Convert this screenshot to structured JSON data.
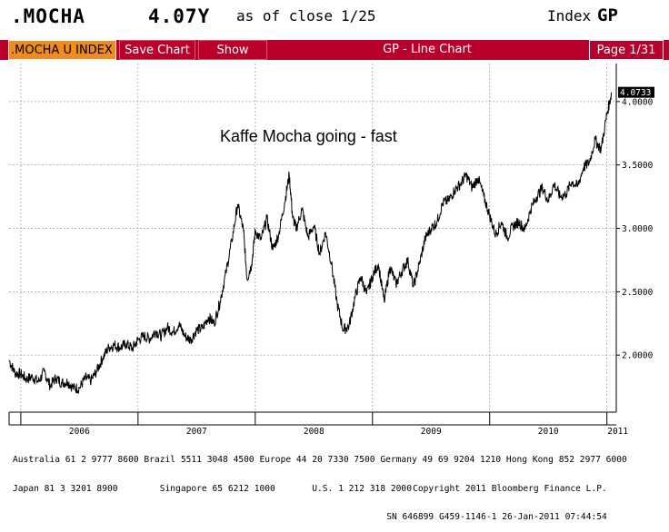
{
  "header": {
    "ticker": ".MOCHA",
    "price": "4.07Y",
    "as_of_label": "as of close",
    "as_of_date": "1/25",
    "index_label": "Index",
    "function_code": "GP"
  },
  "toolbar": {
    "security": ".MOCHA U INDEX",
    "save_chart": "Save Chart",
    "show": "Show",
    "title": "GP - Line Chart",
    "page": "Page 1/31"
  },
  "colors": {
    "toolbar_red": "#b8002a",
    "security_orange": "#f08c1e",
    "line": "#000000"
  },
  "chart_data": {
    "type": "line",
    "title": "",
    "annotation": "Kaffe Mocha going - fast",
    "xlabel": "",
    "ylabel": "",
    "x_tick_labels": [
      "2006",
      "2007",
      "2008",
      "2009",
      "2010",
      "2011"
    ],
    "y_tick_labels": [
      "2.0000",
      "2.5000",
      "3.0000",
      "3.5000",
      "4.0000"
    ],
    "y_ticks": [
      2.0,
      2.5,
      3.0,
      3.5,
      4.0
    ],
    "xlim": [
      2005.9,
      2011.08
    ],
    "ylim": [
      1.55,
      4.3
    ],
    "grid": true,
    "last_value_label": "4.0733",
    "last_value": 4.0733,
    "series": [
      {
        "values": [
          [
            2005.9,
            1.96
          ],
          [
            2005.95,
            1.86
          ],
          [
            2006.0,
            1.85
          ],
          [
            2006.05,
            1.81
          ],
          [
            2006.1,
            1.83
          ],
          [
            2006.15,
            1.79
          ],
          [
            2006.2,
            1.87
          ],
          [
            2006.25,
            1.76
          ],
          [
            2006.3,
            1.82
          ],
          [
            2006.35,
            1.78
          ],
          [
            2006.4,
            1.79
          ],
          [
            2006.45,
            1.74
          ],
          [
            2006.5,
            1.74
          ],
          [
            2006.55,
            1.82
          ],
          [
            2006.6,
            1.8
          ],
          [
            2006.65,
            1.88
          ],
          [
            2006.7,
            1.98
          ],
          [
            2006.75,
            2.06
          ],
          [
            2006.8,
            2.08
          ],
          [
            2006.85,
            2.06
          ],
          [
            2006.9,
            2.09
          ],
          [
            2006.95,
            2.05
          ],
          [
            2007.0,
            2.12
          ],
          [
            2007.05,
            2.15
          ],
          [
            2007.1,
            2.13
          ],
          [
            2007.15,
            2.19
          ],
          [
            2007.2,
            2.15
          ],
          [
            2007.25,
            2.22
          ],
          [
            2007.3,
            2.18
          ],
          [
            2007.35,
            2.24
          ],
          [
            2007.4,
            2.15
          ],
          [
            2007.45,
            2.12
          ],
          [
            2007.5,
            2.2
          ],
          [
            2007.55,
            2.21
          ],
          [
            2007.6,
            2.3
          ],
          [
            2007.65,
            2.25
          ],
          [
            2007.7,
            2.42
          ],
          [
            2007.75,
            2.65
          ],
          [
            2007.8,
            2.9
          ],
          [
            2007.85,
            3.19
          ],
          [
            2007.9,
            2.98
          ],
          [
            2007.93,
            2.6
          ],
          [
            2007.97,
            2.72
          ],
          [
            2008.0,
            2.98
          ],
          [
            2008.05,
            2.91
          ],
          [
            2008.1,
            3.08
          ],
          [
            2008.15,
            2.83
          ],
          [
            2008.2,
            2.95
          ],
          [
            2008.25,
            3.2
          ],
          [
            2008.29,
            3.42
          ],
          [
            2008.32,
            3.08
          ],
          [
            2008.35,
            3.0
          ],
          [
            2008.4,
            3.15
          ],
          [
            2008.45,
            2.93
          ],
          [
            2008.5,
            3.02
          ],
          [
            2008.55,
            2.8
          ],
          [
            2008.6,
            2.97
          ],
          [
            2008.65,
            2.72
          ],
          [
            2008.7,
            2.4
          ],
          [
            2008.75,
            2.2
          ],
          [
            2008.8,
            2.23
          ],
          [
            2008.85,
            2.45
          ],
          [
            2008.9,
            2.62
          ],
          [
            2008.95,
            2.48
          ],
          [
            2009.0,
            2.62
          ],
          [
            2009.05,
            2.72
          ],
          [
            2009.1,
            2.42
          ],
          [
            2009.15,
            2.7
          ],
          [
            2009.2,
            2.56
          ],
          [
            2009.25,
            2.66
          ],
          [
            2009.3,
            2.75
          ],
          [
            2009.35,
            2.54
          ],
          [
            2009.4,
            2.72
          ],
          [
            2009.45,
            2.92
          ],
          [
            2009.5,
            3.0
          ],
          [
            2009.55,
            3.05
          ],
          [
            2009.6,
            3.2
          ],
          [
            2009.65,
            3.22
          ],
          [
            2009.7,
            3.3
          ],
          [
            2009.75,
            3.35
          ],
          [
            2009.8,
            3.42
          ],
          [
            2009.85,
            3.32
          ],
          [
            2009.9,
            3.4
          ],
          [
            2009.95,
            3.25
          ],
          [
            2010.0,
            3.1
          ],
          [
            2010.05,
            2.95
          ],
          [
            2010.1,
            3.05
          ],
          [
            2010.15,
            2.93
          ],
          [
            2010.2,
            3.02
          ],
          [
            2010.25,
            3.05
          ],
          [
            2010.3,
            2.99
          ],
          [
            2010.35,
            3.15
          ],
          [
            2010.4,
            3.25
          ],
          [
            2010.45,
            3.32
          ],
          [
            2010.5,
            3.22
          ],
          [
            2010.55,
            3.35
          ],
          [
            2010.6,
            3.25
          ],
          [
            2010.65,
            3.27
          ],
          [
            2010.7,
            3.37
          ],
          [
            2010.75,
            3.33
          ],
          [
            2010.8,
            3.48
          ],
          [
            2010.85,
            3.52
          ],
          [
            2010.9,
            3.7
          ],
          [
            2010.95,
            3.62
          ],
          [
            2011.0,
            3.9
          ],
          [
            2011.04,
            4.07
          ]
        ]
      }
    ]
  },
  "footer": {
    "line1_left": "Australia 61 2 9777 8600 Brazil 5511 3048 4500 Europe 44 20 7330 7500 Germany 49 69 9204 1210 Hong Kong 852 2977 6000",
    "line2_left": "Japan 81 3 3201 8900        Singapore 65 6212 1000       U.S. 1 212 318 2000",
    "line2_right": "Copyright 2011 Bloomberg Finance L.P.",
    "line3_right": "SN 646899 G459-1146-1 26-Jan-2011 07:44:54"
  }
}
